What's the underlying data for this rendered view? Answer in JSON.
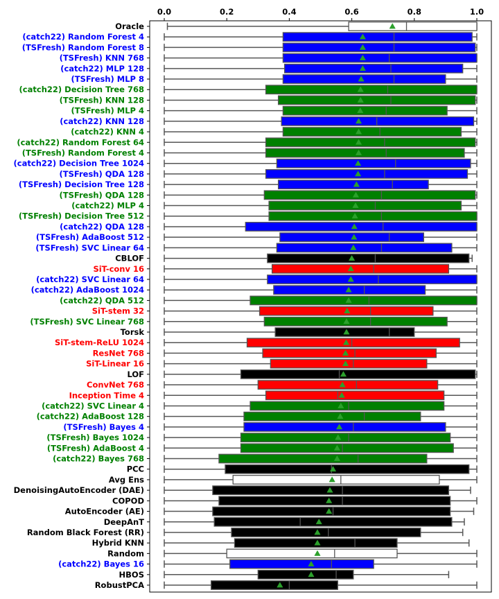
{
  "chart_data": {
    "type": "boxplot",
    "orientation": "horizontal",
    "xlim": [
      0.0,
      1.0
    ],
    "xticks": [
      "0.0",
      "0.2",
      "0.4",
      "0.6",
      "0.8",
      "1.0"
    ],
    "xtick_values": [
      0.0,
      0.2,
      0.4,
      0.6,
      0.8,
      1.0
    ],
    "x_axis_position": "top",
    "grid": false,
    "mean_marker": "green triangle",
    "colors": {
      "red": "#ff0000",
      "blue": "#0000ff",
      "green": "#008000",
      "black": "#000000",
      "white": "#ffffff"
    },
    "rows": [
      {
        "label": "Oracle",
        "color": "white",
        "label_color": "black",
        "whisker_low": 0.01,
        "q1": 0.59,
        "median": 0.775,
        "q3": 1.0,
        "whisker_high": 1.0,
        "mean": 0.73
      },
      {
        "label": "(catch22) Random Forest 4",
        "color": "blue",
        "label_color": "blue",
        "whisker_low": 0.0,
        "q1": 0.38,
        "median": 0.735,
        "q3": 0.985,
        "whisker_high": 1.0,
        "mean": 0.635
      },
      {
        "label": "(TSFresh) Random Forest 8",
        "color": "blue",
        "label_color": "blue",
        "whisker_low": 0.0,
        "q1": 0.38,
        "median": 0.735,
        "q3": 0.995,
        "whisker_high": 1.0,
        "mean": 0.635
      },
      {
        "label": "(TSFresh) KNN 768",
        "color": "blue",
        "label_color": "blue",
        "whisker_low": 0.0,
        "q1": 0.38,
        "median": 0.72,
        "q3": 1.0,
        "whisker_high": 1.0,
        "mean": 0.635
      },
      {
        "label": "(catch22) MLP 128",
        "color": "blue",
        "label_color": "blue",
        "whisker_low": 0.0,
        "q1": 0.385,
        "median": 0.725,
        "q3": 0.955,
        "whisker_high": 1.0,
        "mean": 0.635
      },
      {
        "label": "(TSFresh) MLP 8",
        "color": "blue",
        "label_color": "blue",
        "whisker_low": 0.0,
        "q1": 0.38,
        "median": 0.735,
        "q3": 0.9,
        "whisker_high": 1.0,
        "mean": 0.63
      },
      {
        "label": "(catch22) Decision Tree 768",
        "color": "green",
        "label_color": "green",
        "whisker_low": 0.0,
        "q1": 0.325,
        "median": 0.715,
        "q3": 1.0,
        "whisker_high": 1.0,
        "mean": 0.628
      },
      {
        "label": "(TSFresh) KNN 128",
        "color": "green",
        "label_color": "green",
        "whisker_low": 0.0,
        "q1": 0.365,
        "median": 0.725,
        "q3": 0.995,
        "whisker_high": 1.0,
        "mean": 0.628
      },
      {
        "label": "(TSFresh) MLP 4",
        "color": "green",
        "label_color": "green",
        "whisker_low": 0.0,
        "q1": 0.38,
        "median": 0.71,
        "q3": 0.905,
        "whisker_high": 1.0,
        "mean": 0.627
      },
      {
        "label": "(catch22) KNN 128",
        "color": "blue",
        "label_color": "blue",
        "whisker_low": 0.0,
        "q1": 0.375,
        "median": 0.68,
        "q3": 0.99,
        "whisker_high": 1.0,
        "mean": 0.622
      },
      {
        "label": "(catch22) KNN 4",
        "color": "green",
        "label_color": "green",
        "whisker_low": 0.0,
        "q1": 0.38,
        "median": 0.69,
        "q3": 0.95,
        "whisker_high": 1.0,
        "mean": 0.622
      },
      {
        "label": "(catch22) Random Forest 64",
        "color": "green",
        "label_color": "green",
        "whisker_low": 0.0,
        "q1": 0.325,
        "median": 0.705,
        "q3": 0.995,
        "whisker_high": 1.0,
        "mean": 0.622
      },
      {
        "label": "(TSFresh) Random Forest 4",
        "color": "green",
        "label_color": "green",
        "whisker_low": 0.0,
        "q1": 0.325,
        "median": 0.71,
        "q3": 0.96,
        "whisker_high": 1.0,
        "mean": 0.622
      },
      {
        "label": "(catch22) Decision Tree 1024",
        "color": "blue",
        "label_color": "blue",
        "whisker_low": 0.0,
        "q1": 0.36,
        "median": 0.74,
        "q3": 0.98,
        "whisker_high": 1.0,
        "mean": 0.62
      },
      {
        "label": "(TSFresh) QDA 128",
        "color": "blue",
        "label_color": "blue",
        "whisker_low": 0.0,
        "q1": 0.325,
        "median": 0.705,
        "q3": 0.97,
        "whisker_high": 1.0,
        "mean": 0.62
      },
      {
        "label": "(TSFresh) Decision Tree 128",
        "color": "blue",
        "label_color": "blue",
        "whisker_low": 0.0,
        "q1": 0.365,
        "median": 0.73,
        "q3": 0.845,
        "whisker_high": 1.0,
        "mean": 0.615
      },
      {
        "label": "(TSFresh) QDA 128",
        "color": "green",
        "label_color": "green",
        "whisker_low": 0.0,
        "q1": 0.32,
        "median": 0.695,
        "q3": 0.995,
        "whisker_high": 1.0,
        "mean": 0.613
      },
      {
        "label": "(catch22) MLP 4",
        "color": "green",
        "label_color": "green",
        "whisker_low": 0.0,
        "q1": 0.335,
        "median": 0.675,
        "q3": 0.95,
        "whisker_high": 1.0,
        "mean": 0.612
      },
      {
        "label": "(TSFresh) Decision Tree 512",
        "color": "green",
        "label_color": "green",
        "whisker_low": 0.0,
        "q1": 0.335,
        "median": 0.695,
        "q3": 1.0,
        "whisker_high": 1.0,
        "mean": 0.61
      },
      {
        "label": "(catch22) QDA 128",
        "color": "blue",
        "label_color": "blue",
        "whisker_low": 0.0,
        "q1": 0.26,
        "median": 0.7,
        "q3": 1.0,
        "whisker_high": 1.0,
        "mean": 0.608
      },
      {
        "label": "(TSFresh) AdaBoost 512",
        "color": "blue",
        "label_color": "blue",
        "whisker_low": 0.0,
        "q1": 0.37,
        "median": 0.72,
        "q3": 0.83,
        "whisker_high": 1.0,
        "mean": 0.607
      },
      {
        "label": "(TSFresh) SVC Linear 64",
        "color": "blue",
        "label_color": "blue",
        "whisker_low": 0.0,
        "q1": 0.36,
        "median": 0.695,
        "q3": 0.92,
        "whisker_high": 1.0,
        "mean": 0.605
      },
      {
        "label": "CBLOF",
        "color": "black",
        "label_color": "black",
        "whisker_low": 0.0,
        "q1": 0.33,
        "median": 0.675,
        "q3": 0.975,
        "whisker_high": 0.985,
        "mean": 0.6
      },
      {
        "label": "SiT-conv 16",
        "color": "red",
        "label_color": "red",
        "whisker_low": 0.0,
        "q1": 0.345,
        "median": 0.67,
        "q3": 0.91,
        "whisker_high": 1.0,
        "mean": 0.597
      },
      {
        "label": "(catch22) SVC Linear 64",
        "color": "blue",
        "label_color": "blue",
        "whisker_low": 0.0,
        "q1": 0.33,
        "median": 0.685,
        "q3": 1.0,
        "whisker_high": 1.0,
        "mean": 0.597
      },
      {
        "label": "(catch22) AdaBoost 1024",
        "color": "blue",
        "label_color": "blue",
        "whisker_low": 0.0,
        "q1": 0.35,
        "median": 0.64,
        "q3": 0.835,
        "whisker_high": 1.0,
        "mean": 0.59
      },
      {
        "label": "(catch22) QDA 512",
        "color": "green",
        "label_color": "green",
        "whisker_low": 0.0,
        "q1": 0.275,
        "median": 0.655,
        "q3": 1.0,
        "whisker_high": 1.0,
        "mean": 0.59
      },
      {
        "label": "SiT-stem 32",
        "color": "red",
        "label_color": "red",
        "whisker_low": 0.0,
        "q1": 0.305,
        "median": 0.66,
        "q3": 0.86,
        "whisker_high": 1.0,
        "mean": 0.585
      },
      {
        "label": "(TSFresh) SVC Linear 768",
        "color": "green",
        "label_color": "green",
        "whisker_low": 0.0,
        "q1": 0.32,
        "median": 0.66,
        "q3": 0.905,
        "whisker_high": 1.0,
        "mean": 0.583
      },
      {
        "label": "Torsk",
        "color": "black",
        "label_color": "black",
        "whisker_low": 0.0,
        "q1": 0.355,
        "median": 0.72,
        "q3": 0.8,
        "whisker_high": 1.0,
        "mean": 0.583
      },
      {
        "label": "SiT-stem-ReLU 1024",
        "color": "red",
        "label_color": "red",
        "whisker_low": 0.0,
        "q1": 0.265,
        "median": 0.6,
        "q3": 0.945,
        "whisker_high": 1.0,
        "mean": 0.582
      },
      {
        "label": "ResNet 768",
        "color": "red",
        "label_color": "red",
        "whisker_low": 0.0,
        "q1": 0.315,
        "median": 0.61,
        "q3": 0.87,
        "whisker_high": 1.0,
        "mean": 0.58
      },
      {
        "label": "SiT-Linear 16",
        "color": "red",
        "label_color": "red",
        "whisker_low": 0.0,
        "q1": 0.34,
        "median": 0.605,
        "q3": 0.84,
        "whisker_high": 1.0,
        "mean": 0.58
      },
      {
        "label": "LOF",
        "color": "black",
        "label_color": "black",
        "whisker_low": 0.0,
        "q1": 0.245,
        "median": 0.56,
        "q3": 0.995,
        "whisker_high": 1.0,
        "mean": 0.573
      },
      {
        "label": "ConvNet 768",
        "color": "red",
        "label_color": "red",
        "whisker_low": 0.0,
        "q1": 0.3,
        "median": 0.615,
        "q3": 0.875,
        "whisker_high": 1.0,
        "mean": 0.57
      },
      {
        "label": "Inception Time 4",
        "color": "red",
        "label_color": "red",
        "whisker_low": 0.0,
        "q1": 0.325,
        "median": 0.555,
        "q3": 0.895,
        "whisker_high": 1.0,
        "mean": 0.568
      },
      {
        "label": "(catch22) SVC Linear 4",
        "color": "green",
        "label_color": "green",
        "whisker_low": 0.0,
        "q1": 0.275,
        "median": 0.59,
        "q3": 0.895,
        "whisker_high": 1.0,
        "mean": 0.565
      },
      {
        "label": "(catch22) AdaBoost 128",
        "color": "green",
        "label_color": "green",
        "whisker_low": 0.0,
        "q1": 0.255,
        "median": 0.64,
        "q3": 0.82,
        "whisker_high": 1.0,
        "mean": 0.563
      },
      {
        "label": "(TSFresh) Bayes 4",
        "color": "blue",
        "label_color": "blue",
        "whisker_low": 0.0,
        "q1": 0.255,
        "median": 0.605,
        "q3": 0.9,
        "whisker_high": 1.0,
        "mean": 0.56
      },
      {
        "label": "(TSFresh) Bayes 1024",
        "color": "green",
        "label_color": "green",
        "whisker_low": 0.0,
        "q1": 0.245,
        "median": 0.59,
        "q3": 0.915,
        "whisker_high": 1.0,
        "mean": 0.556
      },
      {
        "label": "(TSFresh) AdaBoost 4",
        "color": "green",
        "label_color": "green",
        "whisker_low": 0.0,
        "q1": 0.245,
        "median": 0.57,
        "q3": 0.925,
        "whisker_high": 1.0,
        "mean": 0.553
      },
      {
        "label": "(catch22) Bayes 768",
        "color": "green",
        "label_color": "green",
        "whisker_low": 0.0,
        "q1": 0.175,
        "median": 0.62,
        "q3": 0.84,
        "whisker_high": 1.0,
        "mean": 0.553
      },
      {
        "label": "PCC",
        "color": "black",
        "label_color": "black",
        "whisker_low": 0.0,
        "q1": 0.195,
        "median": 0.535,
        "q3": 0.975,
        "whisker_high": 1.0,
        "mean": 0.54
      },
      {
        "label": "Avg Ens",
        "color": "white",
        "label_color": "black",
        "whisker_low": 0.0,
        "q1": 0.22,
        "median": 0.565,
        "q3": 0.88,
        "whisker_high": 1.0,
        "mean": 0.537
      },
      {
        "label": "DenoisingAutoEncoder (DAE)",
        "color": "black",
        "label_color": "black",
        "whisker_low": 0.0,
        "q1": 0.155,
        "median": 0.57,
        "q3": 0.91,
        "whisker_high": 0.98,
        "mean": 0.53
      },
      {
        "label": "COPOD",
        "color": "black",
        "label_color": "black",
        "whisker_low": 0.0,
        "q1": 0.175,
        "median": 0.57,
        "q3": 0.915,
        "whisker_high": 1.0,
        "mean": 0.527
      },
      {
        "label": "AutoEncoder (AE)",
        "color": "black",
        "label_color": "black",
        "whisker_low": 0.0,
        "q1": 0.155,
        "median": 0.54,
        "q3": 0.915,
        "whisker_high": 0.99,
        "mean": 0.527
      },
      {
        "label": "DeepAnT",
        "color": "black",
        "label_color": "black",
        "whisker_low": 0.0,
        "q1": 0.16,
        "median": 0.435,
        "q3": 0.92,
        "whisker_high": 0.96,
        "mean": 0.495
      },
      {
        "label": "Random Black Forest (RR)",
        "color": "black",
        "label_color": "black",
        "whisker_low": 0.0,
        "q1": 0.215,
        "median": 0.525,
        "q3": 0.82,
        "whisker_high": 0.955,
        "mean": 0.49
      },
      {
        "label": "Hybrid KNN",
        "color": "black",
        "label_color": "black",
        "whisker_low": 0.0,
        "q1": 0.225,
        "median": 0.61,
        "q3": 0.745,
        "whisker_high": 0.975,
        "mean": 0.49
      },
      {
        "label": "Random",
        "color": "white",
        "label_color": "black",
        "whisker_low": 0.0,
        "q1": 0.2,
        "median": 0.545,
        "q3": 0.745,
        "whisker_high": 1.0,
        "mean": 0.49
      },
      {
        "label": "(catch22) Bayes 16",
        "color": "blue",
        "label_color": "blue",
        "whisker_low": 0.0,
        "q1": 0.21,
        "median": 0.535,
        "q3": 0.67,
        "whisker_high": 1.0,
        "mean": 0.47
      },
      {
        "label": "HBOS",
        "color": "black",
        "label_color": "black",
        "whisker_low": 0.0,
        "q1": 0.3,
        "median": 0.55,
        "q3": 0.605,
        "whisker_high": 0.91,
        "mean": 0.47
      },
      {
        "label": "RobustPCA",
        "color": "black",
        "label_color": "black",
        "whisker_low": 0.0,
        "q1": 0.15,
        "median": 0.4,
        "q3": 0.555,
        "whisker_high": 1.0,
        "mean": 0.37
      }
    ]
  }
}
